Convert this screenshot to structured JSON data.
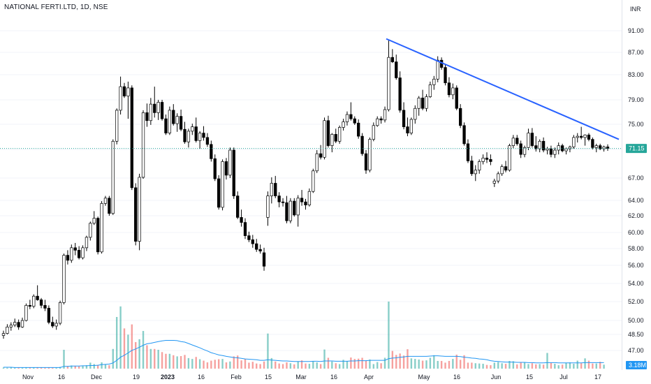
{
  "header": {
    "title": "NATIONAL FERTI.LTD, 1D, NSE",
    "currency": "INR"
  },
  "colors": {
    "up_body": "#ffffff",
    "down_body": "#000000",
    "wick": "#000000",
    "trendline": "#2962ff",
    "vol_up": "#26a69a",
    "vol_down": "#ef5350",
    "vol_ma": "#2196f3",
    "last_price_bg": "#26a69a",
    "vol_badge_bg": "#2196f3"
  },
  "chart_data": {
    "type": "candlestick",
    "title": "NATIONAL FERTI.LTD, 1D, NSE",
    "price_ticks": [
      "91.00",
      "87.00",
      "83.00",
      "79.00",
      "75.00",
      "71.00",
      "67.00",
      "64.00",
      "62.00",
      "60.00",
      "58.00",
      "56.00",
      "54.00",
      "52.00",
      "50.00",
      "48.50",
      "47.00"
    ],
    "x_ticks": [
      "Nov",
      "16",
      "Dec",
      "19",
      "2023",
      "16",
      "Feb",
      "15",
      "Mar",
      "16",
      "Apr",
      "May",
      "16",
      "Jun",
      "15",
      "Jul",
      "17"
    ],
    "bold_x_ticks": [
      "2023"
    ],
    "last_price": "71.15",
    "volume_label": "3.18M",
    "trendline": {
      "start": {
        "date": "2023-04-03",
        "price": 89.5
      },
      "end": {
        "date": "2023-07-21",
        "price": 72.6
      }
    },
    "start_date": "2022-10-25",
    "candles": [
      [
        48.4,
        48.9,
        48.1,
        48.6
      ],
      [
        48.6,
        49.6,
        48.5,
        49.3
      ],
      [
        49.3,
        49.8,
        48.9,
        49.5
      ],
      [
        49.5,
        50.2,
        49.3,
        49.8
      ],
      [
        49.8,
        50.1,
        49.0,
        49.3
      ],
      [
        49.3,
        50.3,
        49.2,
        50.0
      ],
      [
        50.0,
        51.8,
        49.9,
        51.6
      ],
      [
        51.6,
        52.2,
        51.2,
        51.5
      ],
      [
        51.5,
        52.8,
        51.3,
        52.6
      ],
      [
        52.6,
        53.8,
        52.1,
        52.2
      ],
      [
        52.2,
        52.4,
        51.3,
        51.6
      ],
      [
        51.6,
        52.2,
        51.0,
        51.3
      ],
      [
        51.3,
        51.6,
        49.6,
        49.8
      ],
      [
        49.8,
        50.4,
        49.2,
        49.4
      ],
      [
        49.4,
        50.1,
        49.0,
        49.7
      ],
      [
        49.7,
        52.1,
        49.5,
        51.9
      ],
      [
        51.9,
        57.4,
        51.7,
        57.2
      ],
      [
        57.2,
        57.8,
        56.1,
        56.6
      ],
      [
        56.6,
        58.5,
        56.3,
        58.1
      ],
      [
        58.1,
        58.7,
        57.2,
        57.8
      ],
      [
        57.8,
        58.3,
        56.7,
        56.9
      ],
      [
        56.9,
        58.4,
        56.7,
        58.1
      ],
      [
        58.1,
        59.6,
        57.7,
        59.4
      ],
      [
        59.4,
        61.3,
        59.0,
        61.1
      ],
      [
        61.1,
        62.6,
        60.9,
        61.7
      ],
      [
        61.7,
        61.9,
        57.3,
        57.6
      ],
      [
        57.6,
        63.9,
        57.4,
        63.6
      ],
      [
        63.6,
        64.6,
        63.3,
        64.3
      ],
      [
        64.3,
        64.6,
        62.0,
        62.3
      ],
      [
        62.3,
        72.6,
        62.1,
        72.3
      ],
      [
        72.3,
        77.6,
        71.8,
        77.3
      ],
      [
        77.3,
        82.7,
        76.6,
        81.1
      ],
      [
        81.1,
        81.7,
        79.3,
        79.6
      ],
      [
        79.6,
        81.9,
        75.9,
        80.9
      ],
      [
        80.9,
        81.3,
        65.4,
        65.7
      ],
      [
        65.7,
        66.3,
        58.4,
        58.9
      ],
      [
        58.9,
        67.6,
        57.8,
        67.1
      ],
      [
        67.1,
        77.3,
        66.9,
        76.9
      ],
      [
        76.9,
        78.4,
        74.6,
        75.6
      ],
      [
        75.6,
        79.3,
        74.9,
        78.3
      ],
      [
        78.3,
        81.1,
        76.1,
        76.9
      ],
      [
        76.9,
        79.0,
        75.7,
        78.6
      ],
      [
        78.6,
        79.0,
        75.6,
        75.9
      ],
      [
        75.9,
        76.6,
        73.3,
        73.6
      ],
      [
        73.6,
        77.9,
        73.3,
        77.3
      ],
      [
        77.3,
        78.3,
        74.8,
        75.1
      ],
      [
        75.1,
        76.8,
        73.8,
        76.3
      ],
      [
        76.3,
        77.4,
        73.9,
        74.2
      ],
      [
        74.2,
        75.4,
        71.9,
        72.2
      ],
      [
        72.2,
        74.3,
        71.3,
        73.9
      ],
      [
        73.9,
        75.1,
        73.3,
        74.6
      ],
      [
        74.6,
        76.1,
        72.1,
        72.4
      ],
      [
        72.4,
        73.9,
        71.1,
        73.6
      ],
      [
        73.6,
        74.7,
        72.4,
        72.9
      ],
      [
        72.9,
        73.6,
        71.4,
        71.8
      ],
      [
        71.8,
        72.4,
        69.3,
        69.7
      ],
      [
        69.7,
        70.3,
        66.6,
        66.9
      ],
      [
        66.9,
        67.4,
        62.8,
        63.1
      ],
      [
        63.1,
        69.6,
        62.7,
        69.3
      ],
      [
        69.3,
        69.8,
        66.8,
        67.4
      ],
      [
        67.4,
        71.3,
        67.0,
        70.9
      ],
      [
        70.9,
        71.3,
        64.2,
        64.6
      ],
      [
        64.6,
        65.2,
        61.6,
        61.8
      ],
      [
        61.8,
        62.8,
        60.7,
        61.2
      ],
      [
        61.2,
        61.7,
        59.2,
        59.6
      ],
      [
        59.6,
        60.1,
        58.8,
        59.1
      ],
      [
        59.1,
        59.7,
        58.1,
        58.6
      ],
      [
        58.6,
        59.2,
        57.6,
        57.9
      ],
      [
        57.9,
        58.5,
        57.4,
        57.7
      ],
      [
        57.5,
        58.1,
        55.4,
        55.9
      ],
      [
        61.8,
        65.2,
        60.8,
        64.6
      ],
      [
        64.6,
        67.1,
        63.6,
        66.3
      ],
      [
        66.3,
        67.3,
        64.3,
        64.6
      ],
      [
        64.6,
        65.1,
        63.1,
        63.8
      ],
      [
        63.8,
        64.3,
        63.2,
        63.7
      ],
      [
        63.7,
        64.6,
        61.1,
        61.4
      ],
      [
        61.4,
        64.3,
        61.1,
        63.9
      ],
      [
        63.9,
        64.3,
        61.9,
        62.1
      ],
      [
        62.1,
        64.7,
        60.7,
        64.3
      ],
      [
        64.3,
        65.4,
        63.3,
        63.8
      ],
      [
        63.8,
        64.2,
        62.8,
        63.4
      ],
      [
        63.4,
        65.6,
        63.2,
        65.2
      ],
      [
        65.2,
        68.3,
        65.0,
        68.0
      ],
      [
        68.0,
        70.9,
        67.7,
        70.4
      ],
      [
        70.4,
        71.7,
        69.6,
        69.9
      ],
      [
        69.9,
        76.1,
        69.6,
        75.6
      ],
      [
        75.6,
        76.4,
        71.3,
        71.6
      ],
      [
        71.6,
        73.6,
        70.6,
        73.4
      ],
      [
        73.4,
        74.3,
        72.0,
        72.3
      ],
      [
        72.3,
        74.8,
        71.9,
        74.5
      ],
      [
        74.5,
        75.9,
        74.0,
        75.4
      ],
      [
        75.4,
        77.1,
        74.8,
        76.6
      ],
      [
        76.6,
        78.6,
        75.6,
        75.9
      ],
      [
        75.9,
        76.3,
        74.9,
        75.2
      ],
      [
        75.2,
        75.8,
        72.7,
        73.1
      ],
      [
        73.1,
        73.6,
        70.1,
        70.4
      ],
      [
        70.4,
        70.9,
        67.6,
        68.1
      ],
      [
        68.1,
        72.9,
        67.8,
        72.6
      ],
      [
        72.6,
        75.3,
        72.3,
        74.8
      ],
      [
        74.8,
        76.3,
        74.6,
        75.9
      ],
      [
        75.9,
        76.3,
        75.1,
        75.7
      ],
      [
        75.7,
        77.9,
        75.3,
        77.4
      ],
      [
        77.4,
        89.3,
        77.1,
        86.1
      ],
      [
        86.1,
        87.6,
        85.1,
        85.3
      ],
      [
        85.3,
        86.6,
        82.2,
        82.5
      ],
      [
        82.5,
        83.6,
        76.9,
        77.3
      ],
      [
        77.3,
        78.6,
        74.2,
        74.6
      ],
      [
        74.6,
        76.1,
        73.1,
        73.6
      ],
      [
        73.6,
        76.1,
        73.3,
        75.8
      ],
      [
        75.8,
        78.1,
        75.1,
        77.6
      ],
      [
        77.6,
        79.6,
        76.4,
        79.3
      ],
      [
        79.3,
        80.6,
        77.3,
        77.6
      ],
      [
        77.6,
        79.9,
        77.1,
        79.5
      ],
      [
        79.5,
        81.9,
        79.3,
        81.4
      ],
      [
        81.4,
        82.8,
        80.6,
        82.3
      ],
      [
        82.3,
        86.3,
        81.8,
        85.6
      ],
      [
        85.6,
        86.1,
        83.9,
        84.3
      ],
      [
        84.3,
        84.8,
        81.3,
        81.7
      ],
      [
        81.7,
        82.6,
        79.4,
        79.8
      ],
      [
        79.8,
        81.6,
        79.1,
        80.9
      ],
      [
        80.9,
        81.3,
        77.3,
        77.6
      ],
      [
        77.6,
        78.3,
        74.4,
        74.8
      ],
      [
        74.8,
        75.3,
        71.6,
        71.9
      ],
      [
        71.9,
        72.6,
        69.1,
        69.4
      ],
      [
        69.4,
        70.1,
        67.3,
        67.6
      ],
      [
        67.6,
        68.8,
        66.6,
        68.1
      ],
      [
        68.1,
        69.6,
        67.6,
        69.3
      ],
      [
        69.3,
        70.3,
        68.9,
        69.8
      ],
      [
        69.8,
        70.6,
        69.1,
        69.6
      ],
      [
        69.6,
        70.3,
        68.8,
        69.3
      ],
      [
        66.3,
        66.9,
        65.8,
        66.6
      ],
      [
        66.6,
        67.9,
        66.3,
        67.6
      ],
      [
        67.6,
        68.9,
        67.3,
        68.6
      ],
      [
        68.6,
        69.4,
        67.8,
        68.1
      ],
      [
        68.1,
        71.9,
        67.9,
        71.6
      ],
      [
        71.6,
        73.3,
        71.2,
        72.8
      ],
      [
        72.8,
        73.3,
        71.6,
        71.9
      ],
      [
        71.9,
        72.4,
        69.8,
        70.3
      ],
      [
        70.3,
        71.6,
        69.9,
        71.3
      ],
      [
        71.3,
        74.3,
        70.9,
        73.6
      ],
      [
        73.6,
        74.4,
        71.3,
        71.6
      ],
      [
        71.6,
        73.1,
        70.7,
        71.1
      ],
      [
        71.1,
        72.6,
        70.6,
        72.3
      ],
      [
        72.3,
        72.9,
        70.6,
        70.9
      ],
      [
        70.9,
        71.4,
        70.3,
        71.1
      ],
      [
        71.1,
        71.6,
        69.9,
        70.3
      ],
      [
        70.3,
        71.3,
        69.8,
        70.9
      ],
      [
        70.9,
        72.1,
        70.3,
        71.6
      ],
      [
        71.6,
        71.9,
        70.6,
        70.8
      ],
      [
        70.8,
        71.3,
        70.3,
        71.1
      ],
      [
        71.1,
        71.6,
        70.6,
        71.4
      ],
      [
        71.4,
        73.3,
        71.1,
        72.9
      ],
      [
        72.9,
        73.6,
        72.1,
        73.1
      ],
      [
        73.1,
        74.6,
        72.6,
        72.9
      ],
      [
        72.9,
        73.4,
        71.6,
        73.3
      ],
      [
        73.3,
        73.6,
        72.3,
        72.6
      ],
      [
        72.6,
        72.9,
        71.0,
        71.3
      ],
      [
        71.3,
        71.9,
        70.6,
        71.6
      ],
      [
        71.6,
        71.9,
        70.9,
        71.1
      ],
      [
        71.1,
        71.6,
        70.7,
        71.4
      ],
      [
        71.4,
        71.8,
        70.8,
        71.15
      ]
    ],
    "volume_max_millions": 3.18,
    "volume": [
      0.04,
      0.03,
      0.04,
      0.03,
      0.03,
      0.03,
      0.05,
      0.04,
      0.04,
      0.05,
      0.04,
      0.03,
      0.04,
      0.03,
      0.03,
      0.06,
      0.66,
      0.09,
      0.11,
      0.09,
      0.08,
      0.09,
      0.12,
      0.21,
      0.16,
      0.13,
      0.22,
      0.15,
      0.12,
      0.69,
      1.81,
      2.18,
      1.41,
      1.19,
      1.55,
      0.93,
      1.03,
      1.32,
      0.82,
      0.69,
      0.69,
      0.66,
      0.58,
      0.52,
      0.52,
      0.47,
      0.43,
      0.44,
      0.48,
      0.37,
      0.34,
      0.41,
      0.33,
      0.28,
      0.22,
      0.28,
      0.31,
      0.33,
      0.34,
      0.22,
      0.25,
      0.43,
      0.46,
      0.29,
      0.34,
      0.21,
      0.24,
      0.18,
      0.16,
      0.25,
      1.23,
      0.37,
      0.25,
      0.18,
      0.16,
      0.22,
      0.19,
      0.15,
      0.25,
      0.29,
      0.18,
      0.17,
      0.26,
      0.22,
      0.16,
      0.67,
      0.38,
      0.25,
      0.19,
      0.16,
      0.31,
      0.26,
      0.39,
      0.34,
      0.35,
      0.38,
      0.28,
      0.32,
      0.16,
      0.23,
      0.19,
      0.38,
      2.35,
      0.62,
      0.48,
      0.53,
      0.46,
      0.68,
      0.36,
      0.34,
      0.32,
      0.28,
      0.29,
      0.38,
      0.47,
      0.27,
      0.27,
      0.21,
      0.27,
      0.34,
      0.49,
      0.31,
      0.47,
      0.21,
      0.21,
      0.19,
      0.18,
      0.17,
      0.13,
      0.12,
      0.21,
      0.23,
      0.19,
      0.17,
      0.27,
      0.26,
      0.15,
      0.21,
      0.21,
      0.16,
      0.19,
      0.15,
      0.16,
      0.14,
      0.55,
      0.2,
      0.17,
      0.12,
      0.14,
      0.2,
      0.22,
      0.17,
      0.28,
      0.19,
      0.36,
      0.28,
      0.18,
      0.18,
      0.24,
      0.14
    ],
    "volume_ma": [
      0.05,
      0.05,
      0.05,
      0.04,
      0.04,
      0.04,
      0.04,
      0.04,
      0.04,
      0.04,
      0.04,
      0.04,
      0.04,
      0.04,
      0.04,
      0.04,
      0.08,
      0.08,
      0.09,
      0.09,
      0.09,
      0.1,
      0.1,
      0.11,
      0.11,
      0.12,
      0.14,
      0.15,
      0.16,
      0.2,
      0.29,
      0.4,
      0.47,
      0.55,
      0.64,
      0.69,
      0.75,
      0.82,
      0.87,
      0.89,
      0.92,
      0.95,
      0.97,
      0.99,
      0.99,
      0.99,
      0.98,
      0.95,
      0.93,
      0.88,
      0.83,
      0.78,
      0.73,
      0.67,
      0.62,
      0.56,
      0.52,
      0.48,
      0.46,
      0.43,
      0.41,
      0.39,
      0.38,
      0.36,
      0.34,
      0.33,
      0.32,
      0.31,
      0.29,
      0.29,
      0.31,
      0.3,
      0.29,
      0.28,
      0.27,
      0.27,
      0.26,
      0.25,
      0.25,
      0.25,
      0.25,
      0.25,
      0.26,
      0.26,
      0.25,
      0.27,
      0.27,
      0.27,
      0.26,
      0.26,
      0.26,
      0.26,
      0.27,
      0.27,
      0.28,
      0.28,
      0.28,
      0.29,
      0.29,
      0.29,
      0.29,
      0.29,
      0.35,
      0.37,
      0.38,
      0.4,
      0.41,
      0.43,
      0.43,
      0.43,
      0.43,
      0.43,
      0.43,
      0.44,
      0.45,
      0.45,
      0.44,
      0.43,
      0.43,
      0.43,
      0.43,
      0.42,
      0.4,
      0.39,
      0.37,
      0.36,
      0.34,
      0.33,
      0.31,
      0.28,
      0.26,
      0.25,
      0.24,
      0.23,
      0.23,
      0.23,
      0.22,
      0.22,
      0.22,
      0.21,
      0.21,
      0.2,
      0.2,
      0.2,
      0.21,
      0.21,
      0.21,
      0.2,
      0.2,
      0.2,
      0.2,
      0.2,
      0.2,
      0.2,
      0.21,
      0.21,
      0.21,
      0.21,
      0.21,
      0.21
    ],
    "ylim": [
      46.0,
      92.0
    ]
  }
}
